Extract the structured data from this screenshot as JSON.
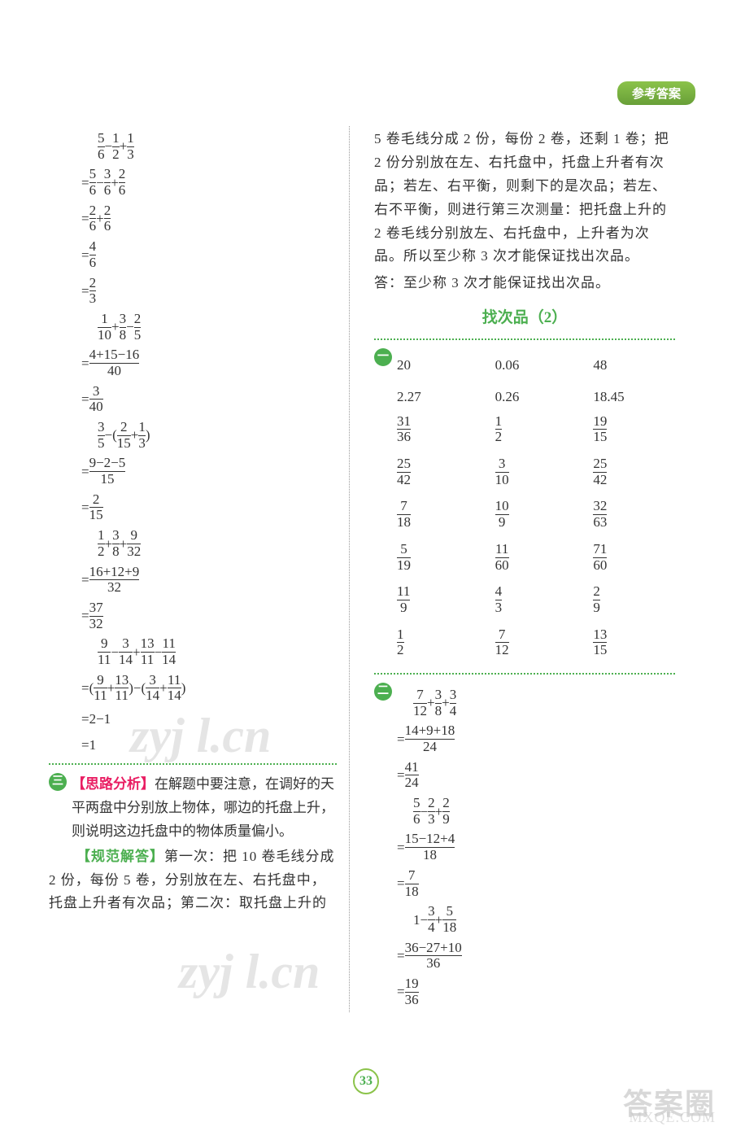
{
  "header": {
    "tab": "参考答案"
  },
  "left": {
    "calc1": {
      "l1": [
        "5",
        "6",
        "−",
        "1",
        "2",
        "+",
        "1",
        "3"
      ],
      "l2": [
        "=",
        "5",
        "6",
        "−",
        "3",
        "6",
        "+",
        "2",
        "6"
      ],
      "l3": [
        "=",
        "2",
        "6",
        "+",
        "2",
        "6"
      ],
      "l4": [
        "=",
        "4",
        "6"
      ],
      "l5": [
        "=",
        "2",
        "3"
      ]
    },
    "calc2": {
      "l1": [
        "1",
        "10",
        "+",
        "3",
        "8",
        "−",
        "2",
        "5"
      ],
      "l2": [
        "=",
        "4+15−16",
        "40"
      ],
      "l3": [
        "=",
        "3",
        "40"
      ]
    },
    "calc3": {
      "l1": [
        "3",
        "5",
        "−(",
        "2",
        "15",
        "+",
        "1",
        "3",
        ")"
      ],
      "l2": [
        "=",
        "9−2−5",
        "15"
      ],
      "l3": [
        "=",
        "2",
        "15"
      ]
    },
    "calc4": {
      "l1": [
        "1",
        "2",
        "+",
        "3",
        "8",
        "+",
        "9",
        "32"
      ],
      "l2": [
        "=",
        "16+12+9",
        "32"
      ],
      "l3": [
        "=",
        "37",
        "32"
      ]
    },
    "calc5": {
      "l1": [
        "9",
        "11",
        "−",
        "3",
        "14",
        "+",
        "13",
        "11",
        "−",
        "11",
        "14"
      ],
      "l2": [
        "=(",
        "9",
        "11",
        "+",
        "13",
        "11",
        ")−(",
        "3",
        "14",
        "+",
        "11",
        "14",
        ")"
      ],
      "l3": "=2−1",
      "l4": "=1"
    },
    "badge3": "三",
    "analysis_label": "【思路分析】",
    "analysis_text": "在解题中要注意，在调好的天平两盘中分别放上物体，哪边的托盘上升，则说明这边托盘中的物体质量偏小。",
    "answer_label": "【规范解答】",
    "answer_text": "第一次：把 10 卷毛线分成 2 份，每份 5 卷，分别放在左、右托盘中，托盘上升者有次品；第二次：取托盘上升的"
  },
  "right": {
    "continue_text": "5 卷毛线分成 2 份，每份 2 卷，还剩 1 卷；把 2 份分别放在左、右托盘中，托盘上升者有次品；若左、右平衡，则剩下的是次品；若左、右不平衡，则进行第三次测量：把托盘上升的 2 卷毛线分别放左、右托盘中，上升者为次品。所以至少称 3 次才能保证找出次品。",
    "answer_line": "答：至少称 3 次才能保证找出次品。",
    "section_title": "找次品（2）",
    "badge1": "一",
    "table": {
      "rows": [
        [
          "20",
          "0.06",
          "48"
        ],
        [
          "2.27",
          "0.26",
          "18.45"
        ]
      ],
      "frac_rows": [
        [
          [
            "31",
            "36"
          ],
          [
            "1",
            "2"
          ],
          [
            "19",
            "15"
          ]
        ],
        [
          [
            "25",
            "42"
          ],
          [
            "3",
            "10"
          ],
          [
            "25",
            "42"
          ]
        ],
        [
          [
            "7",
            "18"
          ],
          [
            "10",
            "9"
          ],
          [
            "32",
            "63"
          ]
        ],
        [
          [
            "5",
            "19"
          ],
          [
            "11",
            "60"
          ],
          [
            "71",
            "60"
          ]
        ],
        [
          [
            "11",
            "9"
          ],
          [
            "4",
            "3"
          ],
          [
            "2",
            "9"
          ]
        ],
        [
          [
            "1",
            "2"
          ],
          [
            "7",
            "12"
          ],
          [
            "13",
            "15"
          ]
        ]
      ]
    },
    "badge2": "二",
    "calc1": {
      "l1": [
        "7",
        "12",
        "+",
        "3",
        "8",
        "+",
        "3",
        "4"
      ],
      "l2": [
        "=",
        "14+9+18",
        "24"
      ],
      "l3": [
        "=",
        "41",
        "24"
      ]
    },
    "calc2": {
      "l1": [
        "5",
        "6",
        "−",
        "2",
        "3",
        "+",
        "2",
        "9"
      ],
      "l2": [
        "=",
        "15−12+4",
        "18"
      ],
      "l3": [
        "=",
        "7",
        "18"
      ]
    },
    "calc3": {
      "l1": [
        "1−",
        "3",
        "4",
        "+",
        "5",
        "18"
      ],
      "l2": [
        "=",
        "36−27+10",
        "36"
      ],
      "l3": [
        "=",
        "19",
        "36"
      ]
    }
  },
  "page_number": "33",
  "watermark": "zyj l.cn",
  "brand": "答案圈",
  "url": "MXQE.COM"
}
